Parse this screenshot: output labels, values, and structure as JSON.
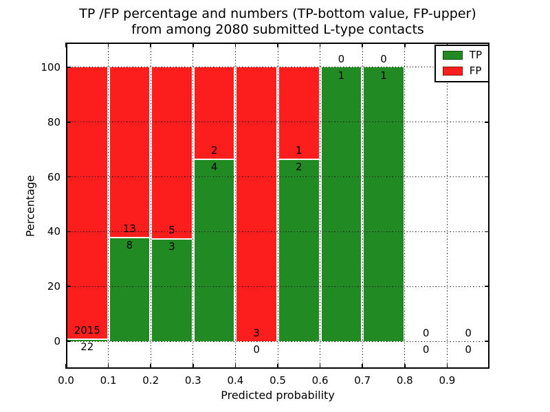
{
  "chart_data": {
    "type": "bar",
    "stacked": true,
    "title": "TP /FP percentage and numbers (TP-bottom value, FP-upper)\nfrom among 2080 submitted L-type contacts",
    "xlabel": "Predicted probability",
    "ylabel": "Percentage",
    "xlim": [
      0.0,
      1.0
    ],
    "ylim": [
      -10,
      109
    ],
    "grid": "dotted, drawn over bars",
    "legend": {
      "position": "upper right",
      "entries": [
        {
          "label": "TP",
          "color": "#228a22"
        },
        {
          "label": "FP",
          "color": "#fc1d1d"
        }
      ]
    },
    "xticks": {
      "values": [
        0.0,
        0.1,
        0.2,
        0.3,
        0.4,
        0.5,
        0.6,
        0.7,
        0.8,
        0.9
      ],
      "labels": [
        "0.0",
        "0.1",
        "0.2",
        "0.3",
        "0.4",
        "0.5",
        "0.6",
        "0.7",
        "0.8",
        "0.9"
      ]
    },
    "yticks": {
      "values": [
        0,
        20,
        40,
        60,
        80,
        100
      ],
      "labels": [
        "0",
        "20",
        "40",
        "60",
        "80",
        "100"
      ]
    },
    "bins": [
      {
        "range": [
          0.0,
          0.1
        ],
        "tp": 22,
        "fp": 2015
      },
      {
        "range": [
          0.1,
          0.2
        ],
        "tp": 8,
        "fp": 13
      },
      {
        "range": [
          0.2,
          0.3
        ],
        "tp": 3,
        "fp": 5
      },
      {
        "range": [
          0.3,
          0.4
        ],
        "tp": 4,
        "fp": 2
      },
      {
        "range": [
          0.4,
          0.5
        ],
        "tp": 0,
        "fp": 3
      },
      {
        "range": [
          0.5,
          0.6
        ],
        "tp": 2,
        "fp": 1
      },
      {
        "range": [
          0.6,
          0.7
        ],
        "tp": 1,
        "fp": 0
      },
      {
        "range": [
          0.7,
          0.8
        ],
        "tp": 1,
        "fp": 0
      },
      {
        "range": [
          0.8,
          0.9
        ],
        "tp": 0,
        "fp": 0
      },
      {
        "range": [
          0.9,
          1.0
        ],
        "tp": 0,
        "fp": 0
      }
    ]
  },
  "colors": {
    "tp": "#228a22",
    "fp": "#fc1d1d",
    "divider": "#ffffff",
    "grid": "#000000",
    "text": "#000000",
    "background": "#ffffff"
  }
}
